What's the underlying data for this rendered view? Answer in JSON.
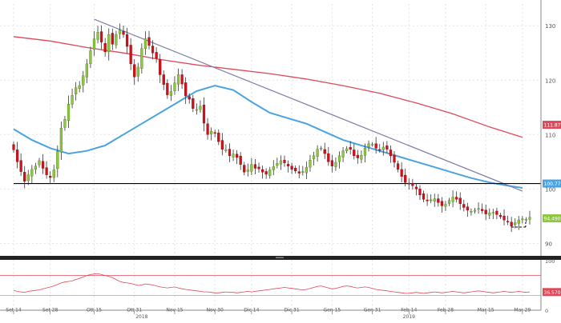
{
  "chart_data": [
    {
      "type": "candlestick",
      "ylim": [
        88,
        134
      ],
      "y_ticks": [
        "90",
        "100",
        "110",
        "120",
        "130"
      ],
      "grid": true,
      "x_ticks": [
        {
          "label": "Set 14",
          "i": 0
        },
        {
          "label": "Set 28",
          "i": 10
        },
        {
          "label": "Ott 15",
          "i": 22
        },
        {
          "label": "Ott 31",
          "i": 33
        },
        {
          "label": "Nov 15",
          "i": 44
        },
        {
          "label": "Nov 30",
          "i": 55
        },
        {
          "label": "Dic 14",
          "i": 65
        },
        {
          "label": "Dic 31",
          "i": 76
        },
        {
          "label": "Gen 15",
          "i": 87
        },
        {
          "label": "Gen 31",
          "i": 98
        },
        {
          "label": "Feb 14",
          "i": 108
        },
        {
          "label": "Feb 28",
          "i": 118
        },
        {
          "label": "Mar 15",
          "i": 129
        },
        {
          "label": "Mar 29",
          "i": 139
        }
      ],
      "year_labels": [
        {
          "label": "2018",
          "i": 35
        },
        {
          "label": "2019",
          "i": 108
        }
      ],
      "colors": {
        "up": "#8dc63f",
        "down": "#d0111b",
        "sma_fast": "#4aa3df",
        "sma_slow": "#e0485a",
        "trendline": "#7c7ca6",
        "support": "#000000"
      },
      "closes": [
        107.2,
        105.0,
        103.2,
        101.4,
        102.6,
        103.6,
        104.2,
        105.2,
        103.8,
        102.6,
        102.1,
        103.5,
        106.9,
        111.2,
        112.8,
        115.6,
        117.2,
        118.6,
        119.0,
        120.8,
        123.0,
        125.4,
        127.6,
        128.8,
        127.0,
        125.2,
        128.4,
        126.6,
        128.4,
        129.2,
        128.4,
        126.2,
        123.0,
        120.6,
        122.4,
        125.8,
        127.6,
        126.4,
        125.0,
        124.0,
        121.0,
        119.2,
        117.3,
        117.9,
        119.5,
        121.0,
        119.3,
        117.1,
        116.5,
        114.8,
        114.6,
        115.2,
        112.1,
        110.0,
        110.6,
        110.3,
        108.7,
        107.3,
        107.2,
        106.1,
        106.4,
        105.8,
        104.5,
        103.1,
        103.5,
        104.5,
        103.8,
        103.7,
        103.1,
        102.7,
        103.5,
        104.1,
        104.7,
        105.2,
        104.8,
        104.2,
        103.6,
        103.3,
        102.9,
        103.2,
        104.0,
        105.3,
        106.1,
        107.3,
        107.5,
        106.5,
        105.0,
        104.2,
        104.9,
        106.1,
        107.0,
        107.4,
        107.3,
        106.1,
        105.7,
        106.2,
        107.5,
        108.3,
        108.2,
        107.5,
        107.2,
        107.7,
        107.3,
        106.1,
        104.9,
        103.6,
        102.3,
        101.2,
        100.9,
        100.6,
        100.0,
        98.9,
        98.1,
        97.8,
        98.0,
        98.2,
        97.5,
        96.9,
        97.2,
        97.9,
        98.5,
        98.1,
        97.3,
        96.6,
        96.1,
        95.9,
        96.1,
        96.4,
        96.0,
        95.4,
        95.6,
        95.7,
        95.3,
        94.9,
        94.3,
        93.9,
        93.2,
        93.8,
        94.3,
        94.5,
        94.4,
        94.8
      ],
      "sma_fast": [
        [
          0,
          111.0
        ],
        [
          5,
          109.0
        ],
        [
          10,
          107.5
        ],
        [
          15,
          106.5
        ],
        [
          20,
          107.0
        ],
        [
          25,
          108.0
        ],
        [
          30,
          110.0
        ],
        [
          35,
          112.0
        ],
        [
          40,
          114.0
        ],
        [
          45,
          116.0
        ],
        [
          50,
          118.0
        ],
        [
          55,
          119.0
        ],
        [
          60,
          118.2
        ],
        [
          65,
          116.0
        ],
        [
          70,
          114.0
        ],
        [
          75,
          113.0
        ],
        [
          80,
          112.0
        ],
        [
          85,
          110.5
        ],
        [
          90,
          109.0
        ],
        [
          95,
          108.0
        ],
        [
          100,
          107.0
        ],
        [
          105,
          106.0
        ],
        [
          110,
          105.0
        ],
        [
          115,
          104.0
        ],
        [
          120,
          103.0
        ],
        [
          125,
          102.0
        ],
        [
          130,
          101.2
        ],
        [
          135,
          100.6
        ],
        [
          139,
          100.2
        ]
      ],
      "sma_slow": [
        [
          0,
          128.0
        ],
        [
          10,
          127.2
        ],
        [
          20,
          126.0
        ],
        [
          30,
          125.0
        ],
        [
          40,
          123.8
        ],
        [
          50,
          122.8
        ],
        [
          60,
          122.0
        ],
        [
          70,
          121.2
        ],
        [
          80,
          120.2
        ],
        [
          90,
          119.0
        ],
        [
          100,
          117.6
        ],
        [
          110,
          115.8
        ],
        [
          120,
          113.8
        ],
        [
          130,
          111.4
        ],
        [
          139,
          109.5
        ]
      ],
      "trendline": [
        [
          22,
          131.2
        ],
        [
          139,
          99.6
        ]
      ],
      "support_level": 101.0,
      "support_range": [
        0,
        139
      ],
      "recent_low_box": {
        "i": [
          136,
          139
        ],
        "y": 93.0
      },
      "value_tags": [
        {
          "value": 111.8,
          "label": "111.8703",
          "color": "#e0485a"
        },
        {
          "value": 101.0,
          "label": "100.7758",
          "color": "#4aa3df"
        },
        {
          "value": 94.6,
          "label": "94.4900",
          "color": "#8dc63f"
        }
      ]
    },
    {
      "type": "line",
      "indicator": "oscillator",
      "ylim": [
        0,
        100
      ],
      "y_ticks": [
        "0",
        "100"
      ],
      "bands": [
        70,
        30
      ],
      "value_tag": {
        "value": 36.6,
        "label": "36.5703",
        "color": "#e0485a"
      },
      "series": [
        {
          "color": "#e0485a",
          "values": [
            40,
            38,
            37,
            36,
            38,
            39,
            40,
            41,
            43,
            45,
            47,
            49,
            52,
            55,
            57,
            58,
            59,
            62,
            64,
            67,
            70,
            72,
            73,
            74,
            72,
            70,
            68,
            66,
            62,
            58,
            56,
            55,
            54,
            52,
            50,
            51,
            53,
            52,
            51,
            49,
            47,
            46,
            45,
            46,
            47,
            45,
            43,
            42,
            41,
            40,
            39,
            38,
            37,
            37,
            36,
            35,
            35,
            36,
            37,
            36,
            36,
            35,
            36,
            37,
            38,
            37,
            38,
            39,
            40,
            41,
            42,
            43,
            44,
            45,
            46,
            45,
            44,
            43,
            42,
            41,
            42,
            44,
            46,
            48,
            49,
            47,
            45,
            43,
            44,
            46,
            48,
            49,
            48,
            46,
            45,
            46,
            47,
            46,
            44,
            42,
            41,
            40,
            39,
            38,
            37,
            36,
            35,
            34,
            34,
            35,
            36,
            35,
            34,
            35,
            36,
            37,
            36,
            35,
            36,
            37,
            38,
            37,
            36,
            35,
            36,
            37,
            38,
            39,
            38,
            37,
            36,
            35,
            36,
            37,
            38,
            37,
            36,
            37,
            38,
            37,
            36,
            37
          ]
        }
      ]
    }
  ]
}
